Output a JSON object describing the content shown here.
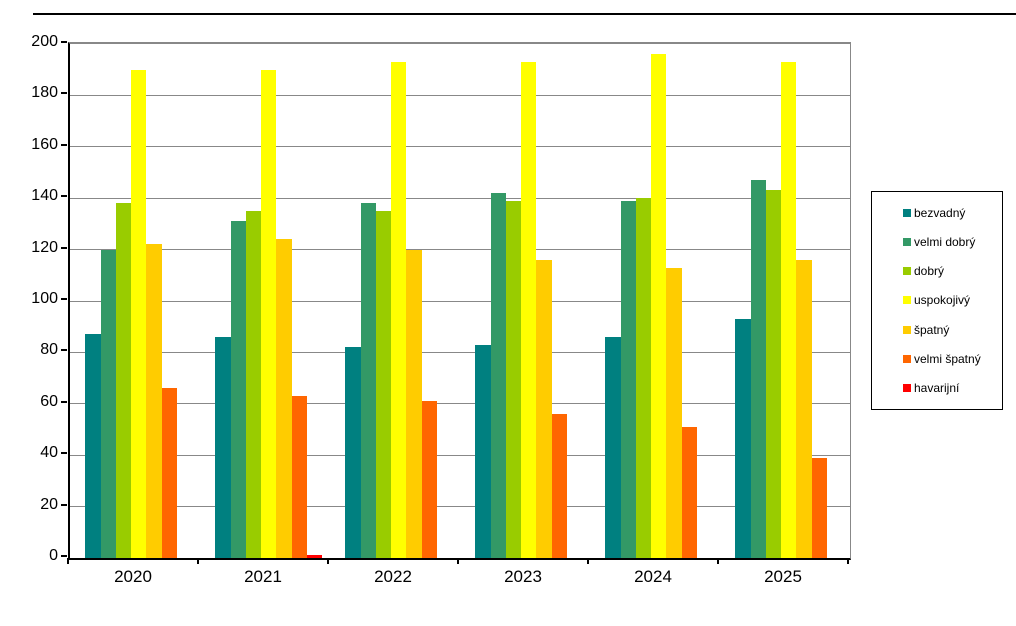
{
  "chart_data": {
    "type": "bar",
    "title": "",
    "xlabel": "",
    "ylabel": "",
    "categories": [
      "2020",
      "2021",
      "2022",
      "2023",
      "2024",
      "2025"
    ],
    "series": [
      {
        "name": "bezvadný",
        "color": "#008080",
        "values": [
          87,
          86,
          82,
          83,
          86,
          93
        ]
      },
      {
        "name": "velmi dobrý",
        "color": "#339966",
        "values": [
          120,
          131,
          138,
          142,
          139,
          147
        ]
      },
      {
        "name": "dobrý",
        "color": "#99CC00",
        "values": [
          138,
          135,
          135,
          139,
          140,
          143
        ]
      },
      {
        "name": "uspokojivý",
        "color": "#FFFF00",
        "values": [
          190,
          190,
          193,
          193,
          196,
          193
        ]
      },
      {
        "name": "špatný",
        "color": "#FFCC00",
        "values": [
          122,
          124,
          120,
          116,
          113,
          116
        ]
      },
      {
        "name": "velmi špatný",
        "color": "#FF6600",
        "values": [
          66,
          63,
          61,
          56,
          51,
          39
        ]
      },
      {
        "name": "havarijní",
        "color": "#FF0000",
        "values": [
          0,
          1,
          0,
          0,
          0,
          0
        ]
      }
    ],
    "ylim": [
      0,
      200
    ],
    "yticks": [
      0,
      20,
      40,
      60,
      80,
      100,
      120,
      140,
      160,
      180,
      200
    ],
    "grid": "horizontal",
    "gridline_color": "#888888",
    "legend_position": "right",
    "plot_background": "#ffffff"
  }
}
